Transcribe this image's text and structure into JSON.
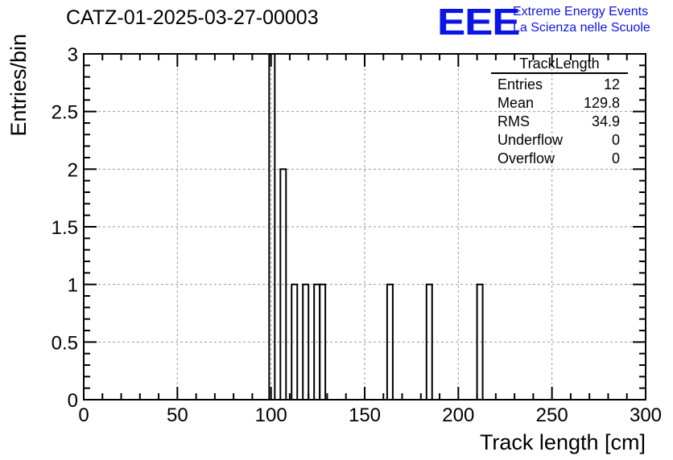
{
  "header": {
    "title": "CATZ-01-2025-03-27-00003",
    "logo_text": "EEE",
    "logo_line1": "Extreme Energy Events",
    "logo_line2": "La Scienza nelle Scuole"
  },
  "stats_box": {
    "title": "TrackLength",
    "rows": [
      {
        "label": "Entries",
        "value": "12"
      },
      {
        "label": "Mean",
        "value": "129.8"
      },
      {
        "label": "RMS",
        "value": "34.9"
      },
      {
        "label": "Underflow",
        "value": "0"
      },
      {
        "label": "Overflow",
        "value": "0"
      }
    ]
  },
  "colors": {
    "logo": "#0a14e6",
    "bars": "#000000",
    "grid": "#9a9a9a"
  },
  "chart_data": {
    "type": "bar",
    "title": "CATZ-01-2025-03-27-00003",
    "xlabel": "Track length [cm]",
    "ylabel": "Entries/bin",
    "xlim": [
      0,
      300
    ],
    "ylim": [
      0,
      3
    ],
    "grid": true,
    "bin_width": 3,
    "x_ticks": [
      "0",
      "50",
      "100",
      "150",
      "200",
      "250",
      "300"
    ],
    "y_ticks": [
      "0",
      "0.5",
      "1",
      "1.5",
      "2",
      "2.5",
      "3"
    ],
    "bins": [
      {
        "x": 99,
        "value": 3
      },
      {
        "x": 105,
        "value": 2
      },
      {
        "x": 111,
        "value": 1
      },
      {
        "x": 117,
        "value": 1
      },
      {
        "x": 123,
        "value": 1
      },
      {
        "x": 126,
        "value": 1
      },
      {
        "x": 162,
        "value": 1
      },
      {
        "x": 183,
        "value": 1
      },
      {
        "x": 210,
        "value": 1
      }
    ]
  }
}
